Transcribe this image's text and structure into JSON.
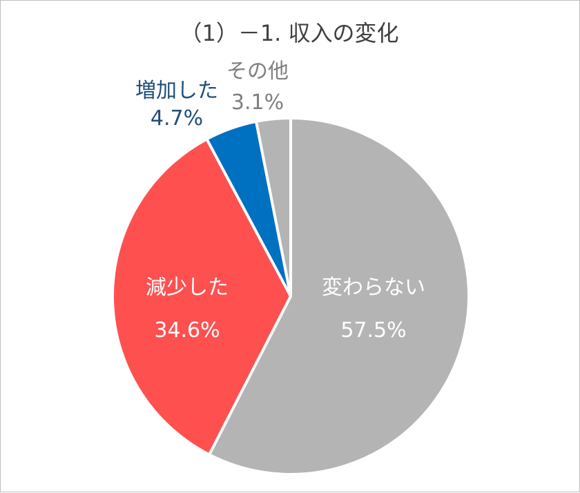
{
  "chart_data": {
    "type": "pie",
    "title": "（1）－1. 収入の変化",
    "categories": [
      "変わらない",
      "減少した",
      "増加した",
      "その他"
    ],
    "values": [
      57.5,
      34.6,
      4.7,
      3.1
    ],
    "value_labels": [
      "57.5%",
      "34.6%",
      "4.7%",
      "3.1%"
    ],
    "colors": [
      "#b4b4b4",
      "#ff5050",
      "#0070c0",
      "#b4b4b4"
    ],
    "label_colors": [
      "#ffffff",
      "#ffffff",
      "#1f4e79",
      "#7f7f7f"
    ],
    "start_angle": "12 o'clock",
    "direction": "clockwise"
  }
}
